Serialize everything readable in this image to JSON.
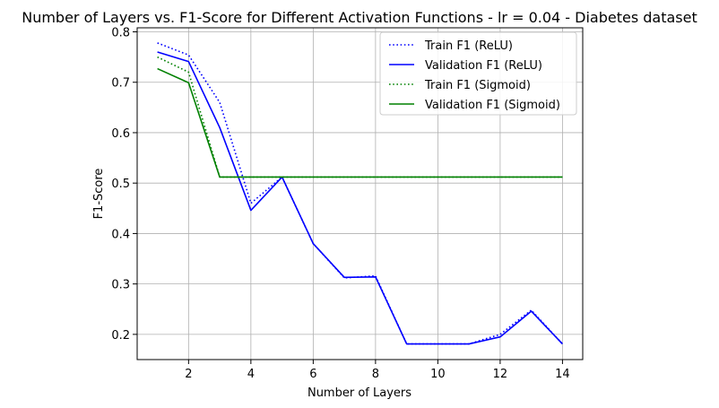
{
  "chart_data": {
    "type": "line",
    "title": "Number of Layers vs. F1-Score for Different Activation Functions - lr = 0.04 - Diabetes dataset",
    "xlabel": "Number of Layers",
    "ylabel": "F1-Score",
    "x": [
      1,
      2,
      3,
      4,
      5,
      6,
      7,
      8,
      9,
      10,
      11,
      12,
      13,
      14
    ],
    "xlim": [
      0.35,
      14.65
    ],
    "ylim": [
      0.15,
      0.808
    ],
    "xticks": [
      2,
      4,
      6,
      8,
      10,
      12,
      14
    ],
    "yticks": [
      0.2,
      0.3,
      0.4,
      0.5,
      0.6,
      0.7,
      0.8
    ],
    "grid": true,
    "legend_position": "top-right",
    "series": [
      {
        "name": "Train F1 (ReLU)",
        "color": "#0000ff",
        "style": "dotted",
        "values": [
          0.778,
          0.754,
          0.66,
          0.46,
          0.512,
          0.38,
          0.312,
          0.316,
          0.181,
          0.181,
          0.181,
          0.2,
          0.248,
          0.181
        ]
      },
      {
        "name": "Validation F1 (ReLU)",
        "color": "#0000ff",
        "style": "solid",
        "values": [
          0.76,
          0.741,
          0.61,
          0.446,
          0.512,
          0.38,
          0.313,
          0.314,
          0.181,
          0.181,
          0.181,
          0.195,
          0.246,
          0.181
        ]
      },
      {
        "name": "Train F1 (Sigmoid)",
        "color": "#008000",
        "style": "dotted",
        "values": [
          0.75,
          0.72,
          0.512,
          0.512,
          0.512,
          0.512,
          0.512,
          0.512,
          0.512,
          0.512,
          0.512,
          0.512,
          0.512,
          0.512
        ]
      },
      {
        "name": "Validation F1 (Sigmoid)",
        "color": "#008000",
        "style": "solid",
        "values": [
          0.727,
          0.699,
          0.512,
          0.512,
          0.512,
          0.512,
          0.512,
          0.512,
          0.512,
          0.512,
          0.512,
          0.512,
          0.512,
          0.512
        ]
      }
    ]
  }
}
